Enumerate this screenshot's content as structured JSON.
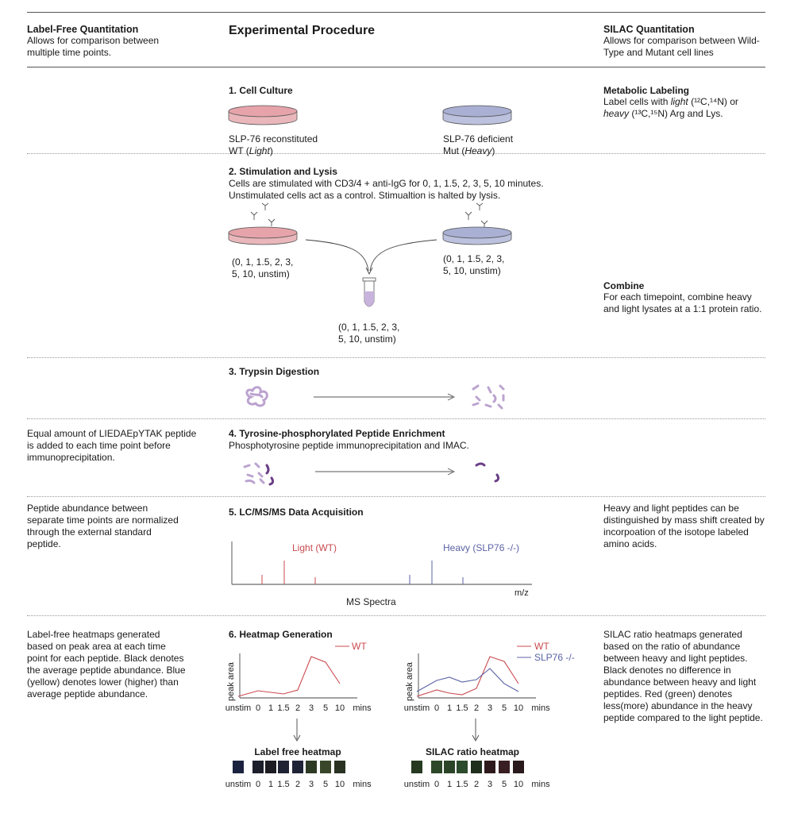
{
  "left_header": {
    "title": "Label-Free Quantitation",
    "desc": "Allows for comparison between multiple time points."
  },
  "center_header": {
    "title": "Experimental Procedure"
  },
  "right_header": {
    "title": "SILAC Quantitation",
    "desc": "Allows for comparison between Wild-Type and Mutant cell lines"
  },
  "step1": {
    "title": "1. Cell Culture",
    "wt_line1": "SLP-76 reconstituted",
    "wt_line2_a": "WT (",
    "wt_line2_i": "Light",
    "wt_line2_b": ")",
    "mut_line1": "SLP-76 deficient",
    "mut_line2_a": "Mut (",
    "mut_line2_i": "Heavy",
    "mut_line2_b": ")",
    "right_title": "Metabolic Labeling",
    "right_l1a": "Label cells with ",
    "right_l1i": "light",
    "right_l1b": " (¹²C,¹⁴N) or",
    "right_l2i": "heavy",
    "right_l2b": " (¹³C,¹⁵N) Arg and Lys."
  },
  "step2": {
    "title": "2. Stimulation and Lysis",
    "desc1": "Cells are stimulated with CD3/4 + anti-IgG for 0, 1, 1.5, 2, 3, 5, 10 minutes.",
    "desc2": "Unstimulated cells act as a control. Stimualtion is halted by lysis.",
    "tp1": "(0, 1, 1.5, 2, 3,",
    "tp2": "5, 10, unstim)",
    "right_title": "Combine",
    "right_desc": "For each timepoint, combine heavy and light lysates at a 1:1 protein ratio."
  },
  "step3": {
    "title": "3. Trypsin Digestion"
  },
  "step4": {
    "title": "4. Tyrosine-phosphorylated Peptide Enrichment",
    "desc": "Phosphotyrosine peptide immunoprecipitation and IMAC.",
    "left_desc": "Equal amount of LIEDAEpYTAK peptide is added to each time point before immunoprecipitation."
  },
  "step5": {
    "title": "5. LC/MS/MS Data Acquisition",
    "left_desc": "Peptide abundance between separate time points are normalized through the external standard peptide.",
    "right_desc": "Heavy and light peptides can be distinguished by mass shift created by incorpoation of the isotope labeled amino acids.",
    "light_label": "Light (WT)",
    "heavy_label": "Heavy (SLP76 -/-)",
    "xunit": "m/z",
    "caption": "MS Spectra"
  },
  "step6": {
    "title": "6. Heatmap Generation",
    "left_desc": "Label-free heatmaps generated based on peak area at each time point for each peptide. Black denotes the average peptide abundance. Blue (yellow) denotes lower (higher) than average peptide abundance.",
    "right_desc": "SILAC ratio heatmaps generated based on the ratio of abundance between heavy and light peptides. Black denotes no difference in abundance between heavy and light peptides. Red (green) denotes less(more) abundance in the heavy peptide compared to the light peptide.",
    "ylabel": "peak area",
    "ticks": [
      "unstim",
      "0",
      "1",
      "1.5",
      "2",
      "3",
      "5",
      "10",
      "mins"
    ],
    "lf_heatmap_title": "Label free heatmap",
    "silac_heatmap_title": "SILAC ratio heatmap",
    "legend_wt": "WT",
    "legend_slp": "SLP76 -/-"
  },
  "colors": {
    "light": "#c94a4f",
    "heavy": "#5b63a6",
    "dish_light": "#e6a4aa",
    "dish_heavy": "#a9b0d4",
    "peptide": "#bba3cf",
    "peptide_dark": "#6b3f86"
  },
  "chart_data": [
    {
      "type": "line",
      "categories": [
        "unstim",
        "0",
        "1",
        "1.5",
        "2",
        "3",
        "5",
        "10"
      ],
      "series": [
        {
          "name": "WT",
          "values": [
            2,
            9,
            7,
            5,
            10,
            52,
            45,
            18
          ]
        }
      ],
      "ylabel": "peak area",
      "xlabel": "mins"
    },
    {
      "type": "line",
      "categories": [
        "unstim",
        "0",
        "1",
        "1.5",
        "2",
        "3",
        "5",
        "10"
      ],
      "series": [
        {
          "name": "WT",
          "values": [
            2,
            10,
            6,
            4,
            12,
            52,
            46,
            18
          ]
        },
        {
          "name": "SLP76 -/-",
          "values": [
            8,
            22,
            26,
            20,
            23,
            37,
            18,
            8
          ]
        }
      ],
      "ylabel": "peak area",
      "xlabel": "mins"
    },
    {
      "type": "heatmap",
      "title": "Label free heatmap",
      "categories": [
        "unstim",
        "0",
        "1",
        "1.5",
        "2",
        "3",
        "5",
        "10"
      ],
      "colors": [
        "#1b2240",
        "#1c1e2b",
        "#1c1c22",
        "#1e2233",
        "#1f2336",
        "#2f3a24",
        "#39462a",
        "#2a3222"
      ]
    },
    {
      "type": "heatmap",
      "title": "SILAC ratio heatmap",
      "categories": [
        "unstim",
        "0",
        "1",
        "1.5",
        "2",
        "3",
        "5",
        "10"
      ],
      "colors": [
        "#253a21",
        "#2d4829",
        "#2b4428",
        "#2c4a2c",
        "#1f2f1d",
        "#2e1a1c",
        "#3a1f22",
        "#2a1a1e"
      ]
    }
  ],
  "ms_spectra": {
    "light_peaks": [
      [
        330,
        0.4
      ],
      [
        358,
        1.0
      ],
      [
        397,
        0.3
      ]
    ],
    "heavy_peaks": [
      [
        516,
        0.4
      ],
      [
        544,
        1.0
      ],
      [
        583,
        0.3
      ]
    ]
  }
}
